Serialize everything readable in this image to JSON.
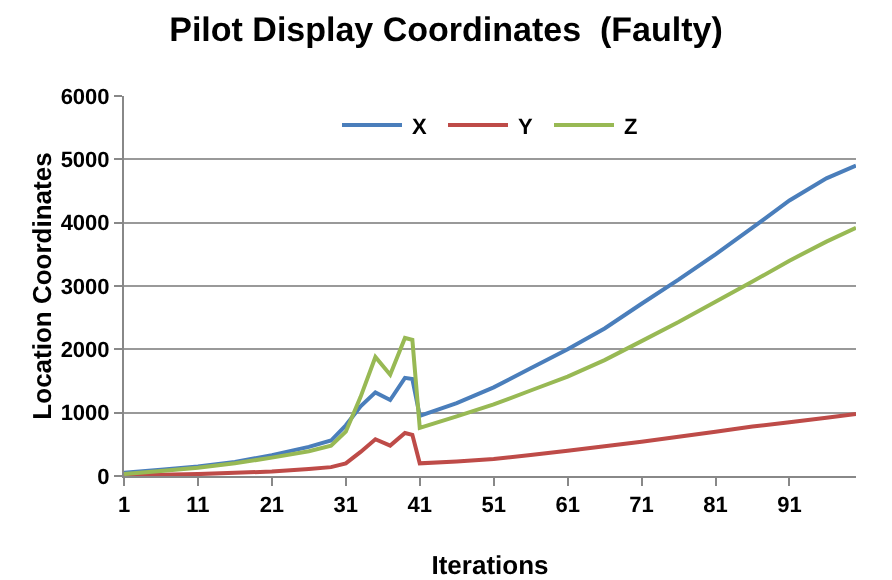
{
  "chart_data": {
    "type": "line",
    "title": "Pilot Display Coordinates  (Faulty)",
    "xlabel": "Iterations",
    "ylabel": "Location Coordinates",
    "x": [
      1,
      6,
      11,
      16,
      21,
      26,
      29,
      31,
      33,
      35,
      37,
      39,
      40,
      41,
      46,
      51,
      56,
      61,
      66,
      71,
      76,
      81,
      86,
      91,
      96,
      100
    ],
    "series": [
      {
        "name": "X",
        "color": "#4a7ebb",
        "values": [
          50,
          100,
          150,
          220,
          330,
          460,
          560,
          800,
          1100,
          1320,
          1200,
          1550,
          1530,
          950,
          1150,
          1400,
          1700,
          2000,
          2330,
          2720,
          3100,
          3500,
          3920,
          4350,
          4700,
          4900
        ]
      },
      {
        "name": "Y",
        "color": "#be4b48",
        "values": [
          10,
          20,
          30,
          50,
          70,
          110,
          140,
          200,
          380,
          580,
          480,
          680,
          650,
          200,
          230,
          270,
          330,
          400,
          470,
          540,
          620,
          700,
          780,
          850,
          920,
          980
        ]
      },
      {
        "name": "Z",
        "color": "#98b954",
        "values": [
          30,
          80,
          130,
          200,
          290,
          390,
          480,
          700,
          1250,
          1880,
          1600,
          2180,
          2150,
          760,
          940,
          1130,
          1350,
          1570,
          1830,
          2130,
          2430,
          2750,
          3070,
          3400,
          3700,
          3920
        ]
      }
    ],
    "xlim": [
      1,
      100
    ],
    "xticks": [
      1,
      11,
      21,
      31,
      41,
      51,
      61,
      71,
      81,
      91
    ],
    "ylim": [
      0,
      6000
    ],
    "yticks": [
      0,
      1000,
      2000,
      3000,
      4000,
      5000,
      6000
    ],
    "grid": "y",
    "legend": "top",
    "marker": "none",
    "line_style": "solid"
  }
}
